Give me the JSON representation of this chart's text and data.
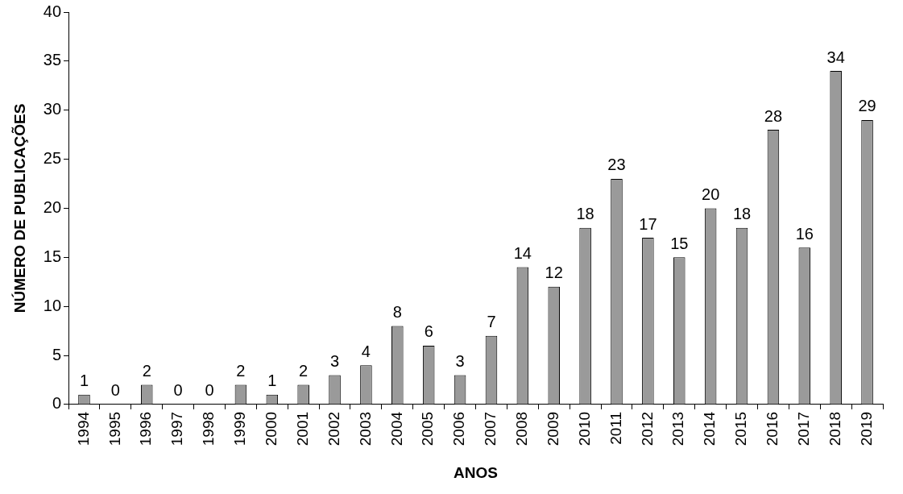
{
  "chart_data": {
    "type": "bar",
    "xlabel": "ANOS",
    "ylabel": "NÚMERO DE PUBLICAÇÕES",
    "categories": [
      "1994",
      "1995",
      "1996",
      "1997",
      "1998",
      "1999",
      "2000",
      "2001",
      "2002",
      "2003",
      "2004",
      "2005",
      "2006",
      "2007",
      "2008",
      "2009",
      "2010",
      "2011",
      "2012",
      "2013",
      "2014",
      "2015",
      "2016",
      "2017",
      "2018",
      "2019"
    ],
    "values": [
      1,
      0,
      2,
      0,
      0,
      2,
      1,
      2,
      3,
      4,
      8,
      6,
      3,
      7,
      14,
      12,
      18,
      23,
      17,
      15,
      20,
      18,
      28,
      16,
      34,
      29
    ],
    "color": "#9a9a9a",
    "ylim": [
      0,
      40
    ],
    "yticks": [
      0,
      5,
      10,
      15,
      20,
      25,
      30,
      35,
      40
    ],
    "grid": false,
    "legend": false,
    "data_labels": true
  }
}
